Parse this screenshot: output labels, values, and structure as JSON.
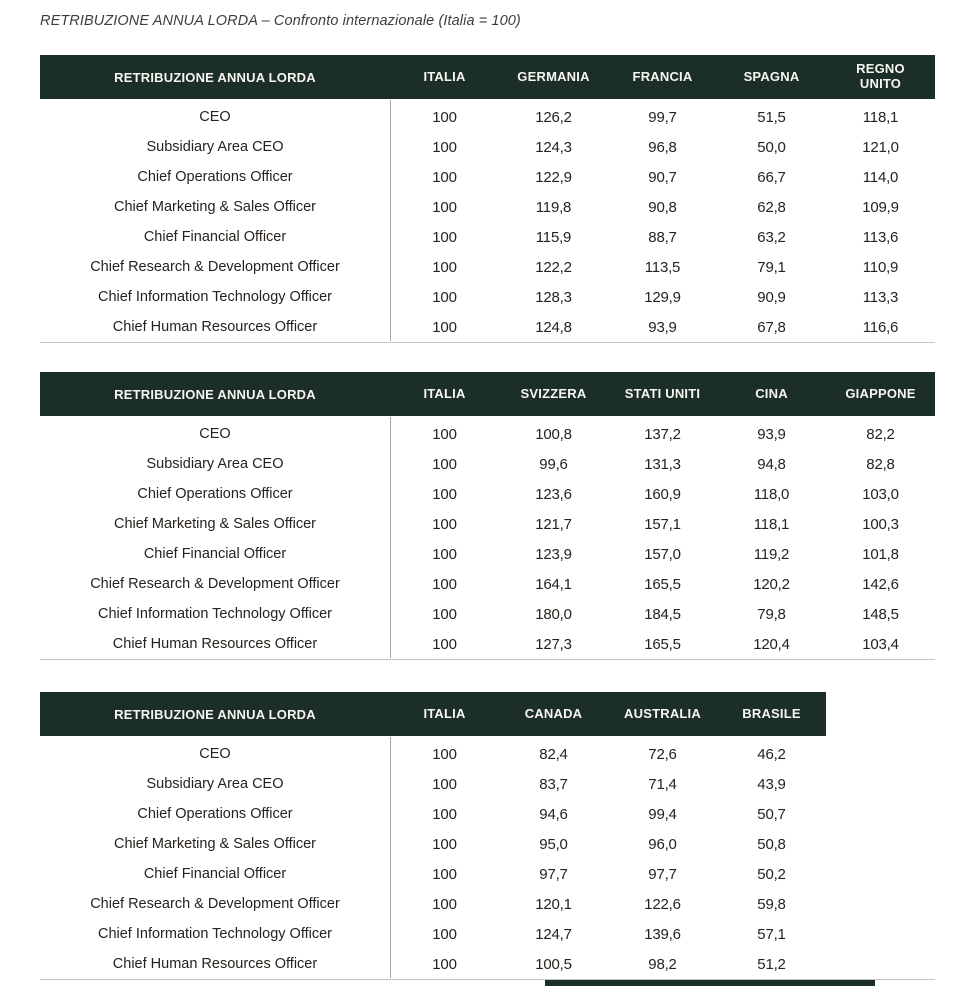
{
  "page_title": "RETRIBUZIONE ANNUA LORDA – Confronto internazionale (Italia = 100)",
  "colors": {
    "header_bg": "#1c2e28",
    "header_text": "#f7f5f0",
    "body_text": "#27221d",
    "divider": "#a6a6a6",
    "border": "#c4c4c4"
  },
  "tables": [
    {
      "header_label": "RETRIBUZIONE ANNUA LORDA",
      "columns": [
        "ITALIA",
        "GERMANIA",
        "FRANCIA",
        "SPAGNA",
        "REGNO UNITO"
      ],
      "rows": [
        {
          "label": "CEO",
          "values": [
            "100",
            "126,2",
            "99,7",
            "51,5",
            "118,1"
          ]
        },
        {
          "label": "Subsidiary Area CEO",
          "values": [
            "100",
            "124,3",
            "96,8",
            "50,0",
            "121,0"
          ]
        },
        {
          "label": "Chief Operations Officer",
          "values": [
            "100",
            "122,9",
            "90,7",
            "66,7",
            "114,0"
          ]
        },
        {
          "label": "Chief Marketing & Sales Officer",
          "values": [
            "100",
            "119,8",
            "90,8",
            "62,8",
            "109,9"
          ]
        },
        {
          "label": "Chief Financial Officer",
          "values": [
            "100",
            "115,9",
            "88,7",
            "63,2",
            "113,6"
          ]
        },
        {
          "label": "Chief Research & Development Officer",
          "values": [
            "100",
            "122,2",
            "113,5",
            "79,1",
            "110,9"
          ]
        },
        {
          "label": "Chief Information Technology Officer",
          "values": [
            "100",
            "128,3",
            "129,9",
            "90,9",
            "113,3"
          ]
        },
        {
          "label": "Chief Human Resources Officer",
          "values": [
            "100",
            "124,8",
            "93,9",
            "67,8",
            "116,6"
          ]
        }
      ]
    },
    {
      "header_label": "RETRIBUZIONE ANNUA LORDA",
      "columns": [
        "ITALIA",
        "SVIZZERA",
        "STATI UNITI",
        "CINA",
        "GIAPPONE"
      ],
      "rows": [
        {
          "label": "CEO",
          "values": [
            "100",
            "100,8",
            "137,2",
            "93,9",
            "82,2"
          ]
        },
        {
          "label": "Subsidiary Area CEO",
          "values": [
            "100",
            "99,6",
            "131,3",
            "94,8",
            "82,8"
          ]
        },
        {
          "label": "Chief Operations Officer",
          "values": [
            "100",
            "123,6",
            "160,9",
            "118,0",
            "103,0"
          ]
        },
        {
          "label": "Chief Marketing & Sales Officer",
          "values": [
            "100",
            "121,7",
            "157,1",
            "118,1",
            "100,3"
          ]
        },
        {
          "label": "Chief Financial Officer",
          "values": [
            "100",
            "123,9",
            "157,0",
            "119,2",
            "101,8"
          ]
        },
        {
          "label": "Chief Research & Development Officer",
          "values": [
            "100",
            "164,1",
            "165,5",
            "120,2",
            "142,6"
          ]
        },
        {
          "label": "Chief Information Technology Officer",
          "values": [
            "100",
            "180,0",
            "184,5",
            "79,8",
            "148,5"
          ]
        },
        {
          "label": "Chief Human Resources Officer",
          "values": [
            "100",
            "127,3",
            "165,5",
            "120,4",
            "103,4"
          ]
        }
      ]
    },
    {
      "header_label": "RETRIBUZIONE ANNUA LORDA",
      "columns": [
        "ITALIA",
        "CANADA",
        "AUSTRALIA",
        "BRASILE"
      ],
      "rows": [
        {
          "label": "CEO",
          "values": [
            "100",
            "82,4",
            "72,6",
            "46,2"
          ]
        },
        {
          "label": "Subsidiary Area CEO",
          "values": [
            "100",
            "83,7",
            "71,4",
            "43,9"
          ]
        },
        {
          "label": "Chief Operations Officer",
          "values": [
            "100",
            "94,6",
            "99,4",
            "50,7"
          ]
        },
        {
          "label": "Chief Marketing & Sales Officer",
          "values": [
            "100",
            "95,0",
            "96,0",
            "50,8"
          ]
        },
        {
          "label": "Chief Financial Officer",
          "values": [
            "100",
            "97,7",
            "97,7",
            "50,2"
          ]
        },
        {
          "label": "Chief Research & Development Officer",
          "values": [
            "100",
            "120,1",
            "122,6",
            "59,8"
          ]
        },
        {
          "label": "Chief Information Technology Officer",
          "values": [
            "100",
            "124,7",
            "139,6",
            "57,1"
          ]
        },
        {
          "label": "Chief Human Resources Officer",
          "values": [
            "100",
            "100,5",
            "98,2",
            "51,2"
          ]
        }
      ]
    }
  ]
}
